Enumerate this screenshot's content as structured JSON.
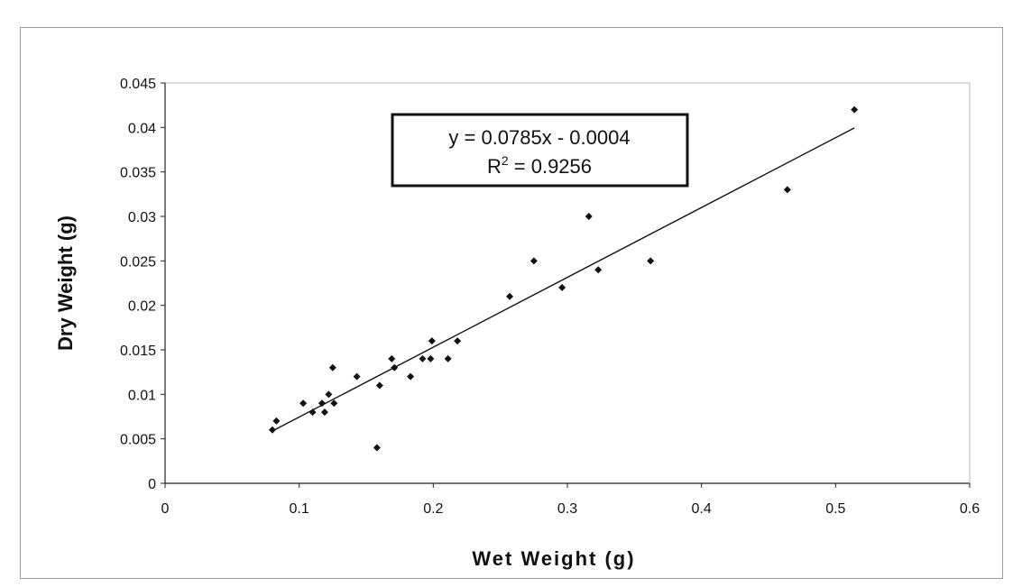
{
  "chart_data": {
    "type": "scatter",
    "title": "",
    "xlabel": "Wet Weight (g)",
    "ylabel": "Dry Weight (g)",
    "xlim": [
      0,
      0.6
    ],
    "ylim": [
      0,
      0.045
    ],
    "x_ticks": [
      "0",
      "0.1",
      "0.2",
      "0.3",
      "0.4",
      "0.5",
      "0.6"
    ],
    "y_ticks": [
      "0",
      "0.005",
      "0.01",
      "0.015",
      "0.02",
      "0.025",
      "0.03",
      "0.035",
      "0.04",
      "0.045"
    ],
    "grid": false,
    "legend": "none",
    "marker_color": "#111111",
    "series": [
      {
        "points": [
          [
            0.08,
            0.006
          ],
          [
            0.083,
            0.007
          ],
          [
            0.103,
            0.009
          ],
          [
            0.11,
            0.008
          ],
          [
            0.117,
            0.009
          ],
          [
            0.119,
            0.008
          ],
          [
            0.122,
            0.01
          ],
          [
            0.125,
            0.013
          ],
          [
            0.126,
            0.009
          ],
          [
            0.143,
            0.012
          ],
          [
            0.158,
            0.004
          ],
          [
            0.16,
            0.011
          ],
          [
            0.169,
            0.014
          ],
          [
            0.171,
            0.013
          ],
          [
            0.183,
            0.012
          ],
          [
            0.192,
            0.014
          ],
          [
            0.198,
            0.014
          ],
          [
            0.199,
            0.016
          ],
          [
            0.211,
            0.014
          ],
          [
            0.218,
            0.016
          ],
          [
            0.257,
            0.021
          ],
          [
            0.275,
            0.025
          ],
          [
            0.296,
            0.022
          ],
          [
            0.316,
            0.03
          ],
          [
            0.323,
            0.024
          ],
          [
            0.362,
            0.025
          ],
          [
            0.464,
            0.033
          ],
          [
            0.514,
            0.042
          ]
        ]
      }
    ],
    "trendline": {
      "slope": 0.0785,
      "intercept": -0.0004,
      "x_range": [
        0.08,
        0.514
      ],
      "equation": "y = 0.0785x - 0.0004",
      "r2_label": "R",
      "r2_sup": "2",
      "r2_value": " = 0.9256"
    }
  }
}
